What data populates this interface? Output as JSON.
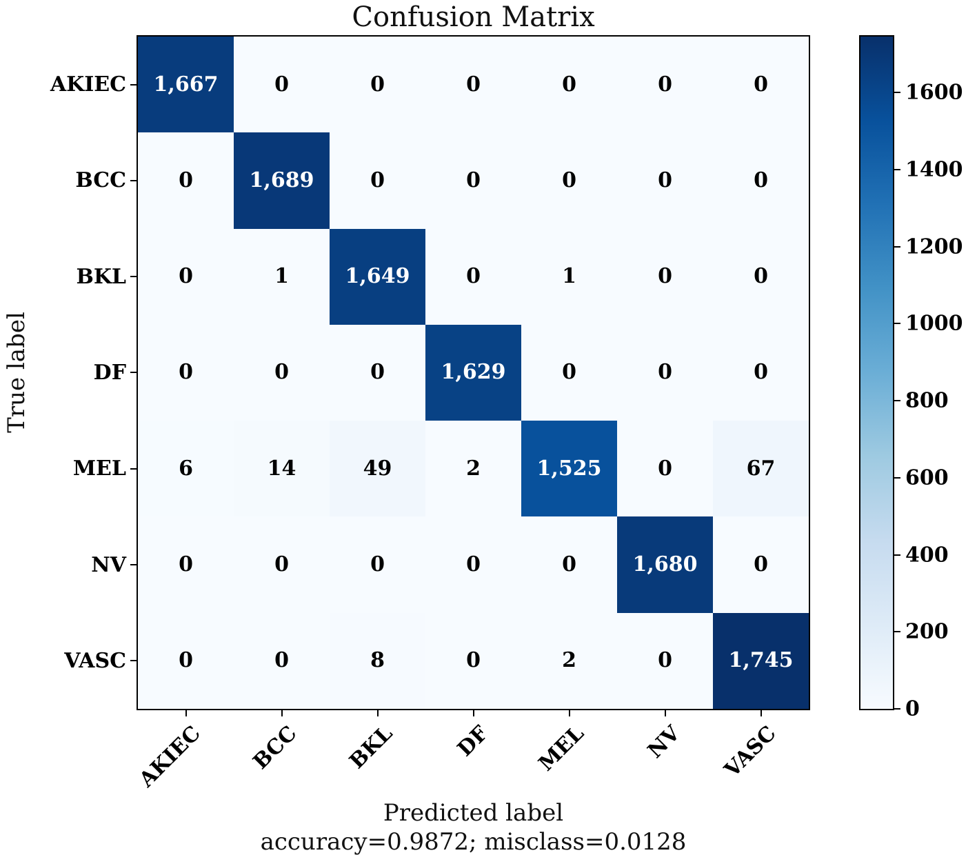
{
  "chart_data": {
    "type": "heatmap",
    "title": "Confusion Matrix",
    "xlabel": "Predicted label",
    "ylabel": "True label",
    "annotation": "accuracy=0.9872; misclass=0.0128",
    "accuracy": 0.9872,
    "misclass": 0.0128,
    "x_categories": [
      "AKIEC",
      "BCC",
      "BKL",
      "DF",
      "MEL",
      "NV",
      "VASC"
    ],
    "y_categories": [
      "AKIEC",
      "BCC",
      "BKL",
      "DF",
      "MEL",
      "NV",
      "VASC"
    ],
    "matrix": [
      [
        1667,
        0,
        0,
        0,
        0,
        0,
        0
      ],
      [
        0,
        1689,
        0,
        0,
        0,
        0,
        0
      ],
      [
        0,
        1,
        1649,
        0,
        1,
        0,
        0
      ],
      [
        0,
        0,
        0,
        1629,
        0,
        0,
        0
      ],
      [
        6,
        14,
        49,
        2,
        1525,
        0,
        67
      ],
      [
        0,
        0,
        0,
        0,
        0,
        1680,
        0
      ],
      [
        0,
        0,
        8,
        0,
        2,
        0,
        1745
      ]
    ],
    "vmin": 0,
    "vmax": 1745,
    "grid": false,
    "colorbar": {
      "position": "right",
      "ticks": [
        0,
        200,
        400,
        600,
        800,
        1000,
        1200,
        1400,
        1600
      ]
    },
    "colormap": {
      "name": "Blues",
      "stops": [
        {
          "pos": 0.0,
          "color": "#f7fbff"
        },
        {
          "pos": 0.125,
          "color": "#deebf7"
        },
        {
          "pos": 0.25,
          "color": "#c6dbef"
        },
        {
          "pos": 0.375,
          "color": "#9ecae1"
        },
        {
          "pos": 0.5,
          "color": "#6baed6"
        },
        {
          "pos": 0.625,
          "color": "#4292c6"
        },
        {
          "pos": 0.75,
          "color": "#2171b5"
        },
        {
          "pos": 0.875,
          "color": "#08519c"
        },
        {
          "pos": 1.0,
          "color": "#08306b"
        }
      ]
    },
    "cell_text_colors": {
      "on_dark": "#ffffff",
      "on_light": "#000000"
    },
    "axis_color": "#000000"
  }
}
